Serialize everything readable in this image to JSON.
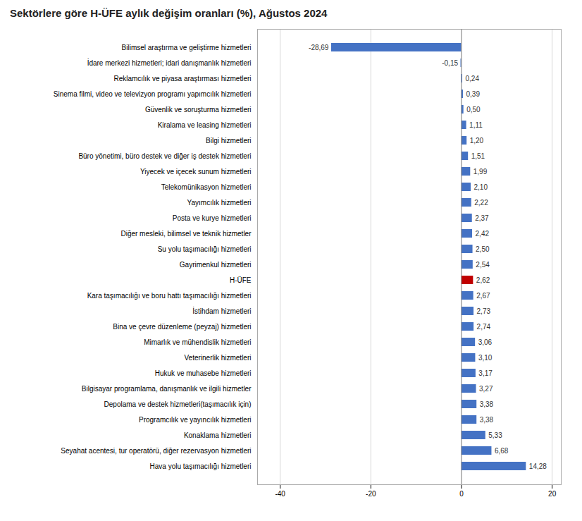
{
  "chart_data": {
    "type": "bar",
    "orientation": "horizontal",
    "title": "Sektörlere göre H-ÜFE aylık değişim oranları (%), Ağustos 2024",
    "categories": [
      "Hava yolu taşımacılığı hizmetleri",
      "Seyahat acentesi, tur operatörü, diğer rezervasyon hizmetleri",
      "Konaklama hizmetleri",
      "Programcılık ve yayıncılık hizmetleri",
      "Depolama ve destek hizmetleri(taşımacılık için)",
      "Bilgisayar programlama, danışmanlık ve ilgili hizmetler",
      "Hukuk ve muhasebe hizmetleri",
      "Veterinerlik hizmetleri",
      "Mimarlık ve mühendislik hizmetleri",
      "Bina ve çevre düzenleme (peyzaj) hizmetleri",
      "İstihdam hizmetleri",
      "Kara taşımacılığı ve boru hattı taşımacılığı hizmetleri",
      "H-ÜFE",
      "Gayrimenkul hizmetleri",
      "Su yolu taşımacılığı hizmetleri",
      "Diğer mesleki, bilimsel ve teknik hizmetler",
      "Posta ve kurye hizmetleri",
      "Yayımcılık hizmetleri",
      "Telekomünikasyon hizmetleri",
      "Yiyecek ve içecek sunum hizmetleri",
      "Büro yönetimi, büro destek ve diğer iş destek hizmetleri",
      "Bilgi hizmetleri",
      "Kiralama ve leasing hizmetleri",
      "Güvenlik ve soruşturma hizmetleri",
      "Sinema filmi, video ve televizyon programı yapımcılık hizmetleri",
      "Reklamcılık ve piyasa araştırması hizmetleri",
      "İdare merkezi hizmetleri; idari danışmanlık hizmetleri",
      "Bilimsel araştırma ve geliştirme hizmetleri"
    ],
    "values": [
      14.28,
      6.68,
      5.33,
      3.38,
      3.38,
      3.27,
      3.17,
      3.1,
      3.06,
      2.74,
      2.73,
      2.67,
      2.62,
      2.54,
      2.5,
      2.42,
      2.37,
      2.22,
      2.1,
      1.99,
      1.51,
      1.2,
      1.11,
      0.5,
      0.39,
      0.24,
      -0.15,
      -28.69
    ],
    "value_labels": [
      "14,28",
      "6,68",
      "5,33",
      "3,38",
      "3,38",
      "3,27",
      "3,17",
      "3,10",
      "3,06",
      "2,74",
      "2,73",
      "2,67",
      "2,62",
      "2,54",
      "2,50",
      "2,42",
      "2,37",
      "2,22",
      "2,10",
      "1,99",
      "1,51",
      "1,20",
      "1,11",
      "0,50",
      "0,39",
      "0,24",
      "-0,15",
      "-28,69"
    ],
    "colors": [
      "#4472C4",
      "#4472C4",
      "#4472C4",
      "#4472C4",
      "#4472C4",
      "#4472C4",
      "#4472C4",
      "#4472C4",
      "#4472C4",
      "#4472C4",
      "#4472C4",
      "#4472C4",
      "#C00000",
      "#4472C4",
      "#4472C4",
      "#4472C4",
      "#4472C4",
      "#4472C4",
      "#4472C4",
      "#4472C4",
      "#4472C4",
      "#4472C4",
      "#4472C4",
      "#4472C4",
      "#4472C4",
      "#4472C4",
      "#4472C4",
      "#4472C4"
    ],
    "xlim": [
      -45,
      22
    ],
    "xticks": [
      -40,
      -20,
      0,
      20
    ],
    "grid": true,
    "data_labels": true
  }
}
